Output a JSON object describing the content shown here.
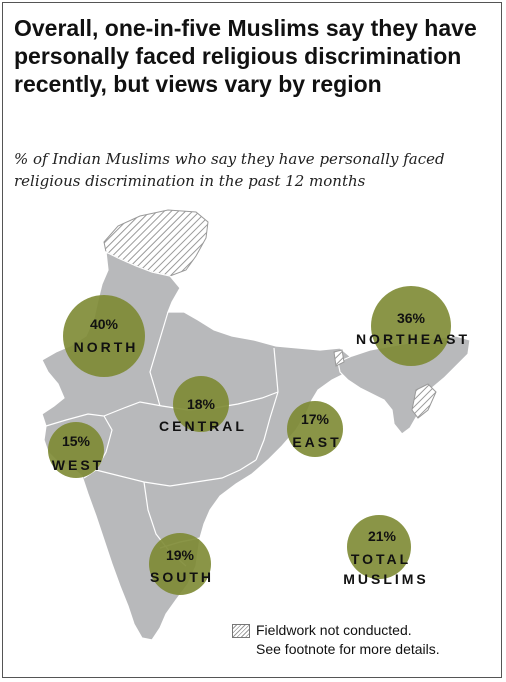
{
  "title": "Overall, one-in-five Muslims say they have personally faced religious discrimination recently, but views vary by region",
  "subtitle": "% of Indian Muslims who say they have personally faced religious discrimination in the past 12 months",
  "colors": {
    "bubble": "#7d8a33",
    "land": "#b8b9bb",
    "border": "#ffffff",
    "hatch": "#9a9a9a"
  },
  "chart_data": {
    "type": "map",
    "unit": "%",
    "regions": [
      {
        "key": "north",
        "name": "NORTH",
        "value": 40,
        "label": "40%"
      },
      {
        "key": "northeast",
        "name": "NORTHEAST",
        "value": 36,
        "label": "36%"
      },
      {
        "key": "central",
        "name": "CENTRAL",
        "value": 18,
        "label": "18%"
      },
      {
        "key": "east",
        "name": "EAST",
        "value": 17,
        "label": "17%"
      },
      {
        "key": "west",
        "name": "WEST",
        "value": 15,
        "label": "15%"
      },
      {
        "key": "south",
        "name": "SOUTH",
        "value": 19,
        "label": "19%"
      },
      {
        "key": "total",
        "name": "TOTAL MUSLIMS",
        "name_lines": [
          "TOTAL",
          "MUSLIMS"
        ],
        "value": 21,
        "label": "21%"
      }
    ]
  },
  "legend": {
    "icon": "hatched-swatch",
    "line1": "Fieldwork not conducted.",
    "line2": "See footnote for more details."
  }
}
